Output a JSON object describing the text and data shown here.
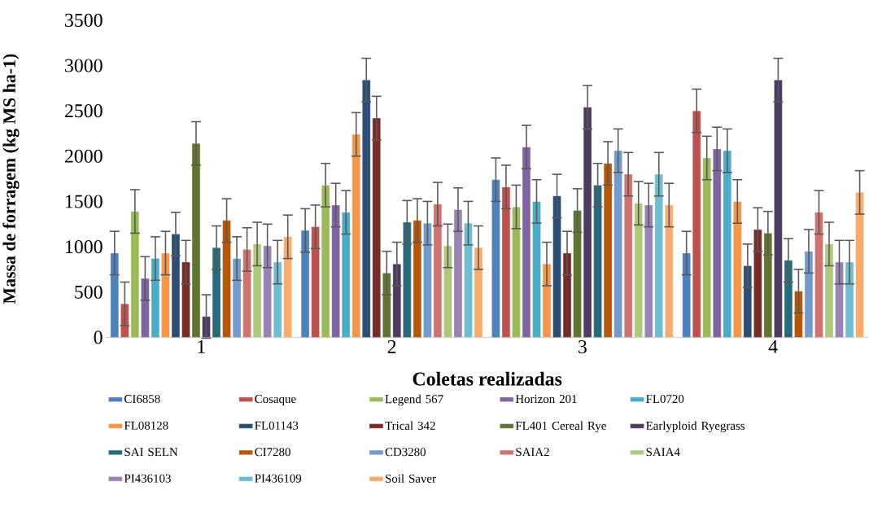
{
  "chart_data": {
    "type": "bar",
    "xlabel": "Coletas realizadas",
    "ylabel": "Massa de forragem  (kg MS ha-1)",
    "categories": [
      "1",
      "2",
      "3",
      "4"
    ],
    "ylim": [
      0,
      3500
    ],
    "yticks": [
      0,
      500,
      1000,
      1500,
      2000,
      2500,
      3000,
      3500
    ],
    "legend": "bottom",
    "series": [
      {
        "name": "CI6858",
        "color": "#4f81bd",
        "values": [
          930,
          1180,
          1740,
          930
        ],
        "errors": [
          240,
          240,
          240,
          240
        ]
      },
      {
        "name": "Cosaque",
        "color": "#c0504d",
        "values": [
          370,
          1220,
          1660,
          2500
        ],
        "errors": [
          240,
          240,
          240,
          240
        ]
      },
      {
        "name": "Legend 567",
        "color": "#9bbb59",
        "values": [
          1390,
          1680,
          1440,
          1980
        ],
        "errors": [
          240,
          240,
          240,
          240
        ]
      },
      {
        "name": "Horizon 201",
        "color": "#8064a2",
        "values": [
          650,
          1460,
          2100,
          2080
        ],
        "errors": [
          240,
          240,
          240,
          240
        ]
      },
      {
        "name": "FL0720",
        "color": "#4bacc6",
        "values": [
          870,
          1380,
          1500,
          2060
        ],
        "errors": [
          240,
          240,
          240,
          240
        ]
      },
      {
        "name": "FL08128",
        "color": "#f79646",
        "values": [
          930,
          2240,
          810,
          1500
        ],
        "errors": [
          240,
          240,
          240,
          240
        ]
      },
      {
        "name": "FL01143",
        "color": "#2c4d75",
        "values": [
          1140,
          2840,
          1560,
          790
        ],
        "errors": [
          240,
          240,
          240,
          240
        ]
      },
      {
        "name": "Trical 342",
        "color": "#772c2a",
        "values": [
          830,
          2420,
          930,
          1190
        ],
        "errors": [
          240,
          240,
          240,
          240
        ]
      },
      {
        "name": "FL401 Cereal Rye",
        "color": "#5f7530",
        "values": [
          2140,
          710,
          1400,
          1150
        ],
        "errors": [
          240,
          240,
          240,
          240
        ]
      },
      {
        "name": "Earlyploid Ryegrass",
        "color": "#4d3b62",
        "values": [
          230,
          810,
          2540,
          2840
        ],
        "errors": [
          240,
          240,
          240,
          240
        ]
      },
      {
        "name": "SAI SELN",
        "color": "#276a7c",
        "values": [
          990,
          1270,
          1680,
          850
        ],
        "errors": [
          240,
          240,
          240,
          240
        ]
      },
      {
        "name": "CI7280",
        "color": "#b65708",
        "values": [
          1290,
          1290,
          1920,
          510
        ],
        "errors": [
          240,
          240,
          240,
          240
        ]
      },
      {
        "name": "CD3280",
        "color": "#729aca",
        "values": [
          870,
          1260,
          2060,
          950
        ],
        "errors": [
          240,
          240,
          240,
          240
        ]
      },
      {
        "name": "SAIA2",
        "color": "#d07370",
        "values": [
          970,
          1470,
          1800,
          1380
        ],
        "errors": [
          240,
          240,
          240,
          240
        ]
      },
      {
        "name": "SAIA4",
        "color": "#afc97a",
        "values": [
          1030,
          1010,
          1480,
          1030
        ],
        "errors": [
          240,
          240,
          240,
          240
        ]
      },
      {
        "name": "PI436103",
        "color": "#9983b5",
        "values": [
          1010,
          1410,
          1460,
          830
        ],
        "errors": [
          240,
          240,
          240,
          240
        ]
      },
      {
        "name": "PI436109",
        "color": "#6fbdd1",
        "values": [
          830,
          1260,
          1800,
          830
        ],
        "errors": [
          240,
          240,
          240,
          240
        ]
      },
      {
        "name": "Soil Saver",
        "color": "#f9ab6b",
        "values": [
          1110,
          990,
          1460,
          1600
        ],
        "errors": [
          240,
          240,
          240,
          240
        ]
      }
    ]
  }
}
